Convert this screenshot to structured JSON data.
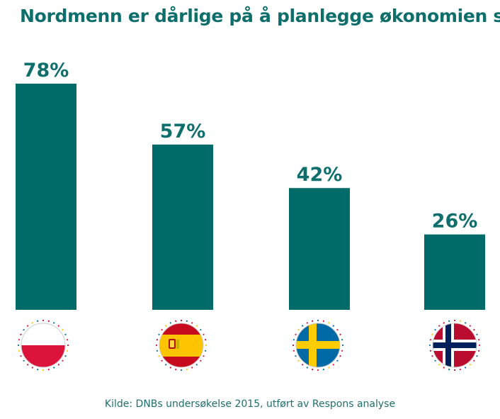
{
  "chart_data": {
    "type": "bar",
    "title": "Nordmenn er dårlige på å planlegge økonomien sin",
    "categories": [
      "poland-flag",
      "spain-flag",
      "sweden-flag",
      "norway-flag"
    ],
    "values": [
      78,
      57,
      42,
      26
    ],
    "data_labels": [
      "78%",
      "57%",
      "42%",
      "26%"
    ],
    "xlabel": "",
    "ylabel": "",
    "grid": false,
    "legend": "none",
    "source": "Kilde: DNBs undersøkelse 2015, utført av Respons analyse"
  },
  "colors": {
    "bar": "#006b69",
    "title": "#0d6e6c",
    "label": "#0f6f6d",
    "source": "#1f6f6d",
    "poland_white": "#ffffff",
    "poland_red": "#dc143c",
    "spain_red": "#c60b1e",
    "spain_yellow": "#ffc400",
    "sweden_blue": "#006aa7",
    "sweden_yellow": "#fecc00",
    "norway_red": "#ba0c2f",
    "norway_white": "#ffffff",
    "norway_blue": "#00205b"
  }
}
